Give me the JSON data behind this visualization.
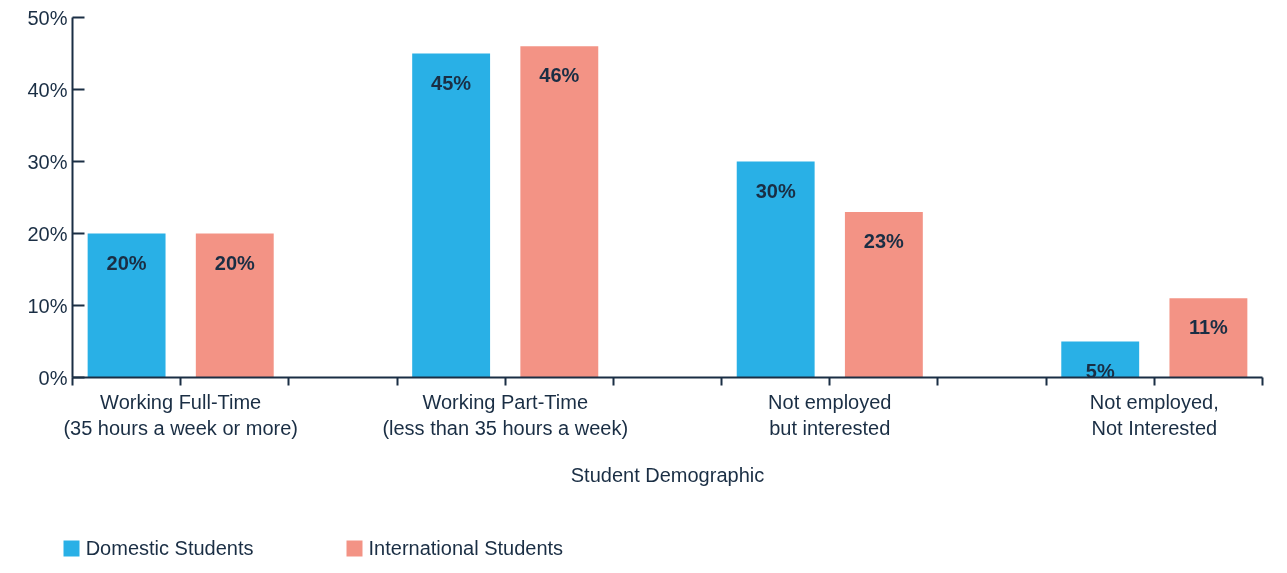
{
  "chart_data": {
    "type": "bar",
    "xlabel": "Student Demographic",
    "categories": [
      "Working Full-Time\n(35 hours a week or more)",
      "Working Part-Time\n(less than 35 hours a week)",
      "Not employed\nbut interested",
      "Not employed,\nNot Interested"
    ],
    "series": [
      {
        "name": "Domestic Students",
        "color": "#29b0e6",
        "values": [
          20,
          45,
          30,
          5
        ],
        "value_labels": [
          "20%",
          "45%",
          "30%",
          "5%"
        ]
      },
      {
        "name": "International Students",
        "color": "#f39385",
        "values": [
          20,
          46,
          23,
          11
        ],
        "value_labels": [
          "20%",
          "46%",
          "23%",
          "11%"
        ]
      }
    ],
    "ylim": [
      0,
      50
    ],
    "yticks": [
      {
        "value": 0,
        "label": "0%"
      },
      {
        "value": 10,
        "label": "10%"
      },
      {
        "value": 20,
        "label": "20%"
      },
      {
        "value": 30,
        "label": "30%"
      },
      {
        "value": 40,
        "label": "40%"
      },
      {
        "value": 50,
        "label": "50%"
      }
    ],
    "grid": false,
    "legend": "bottom"
  }
}
